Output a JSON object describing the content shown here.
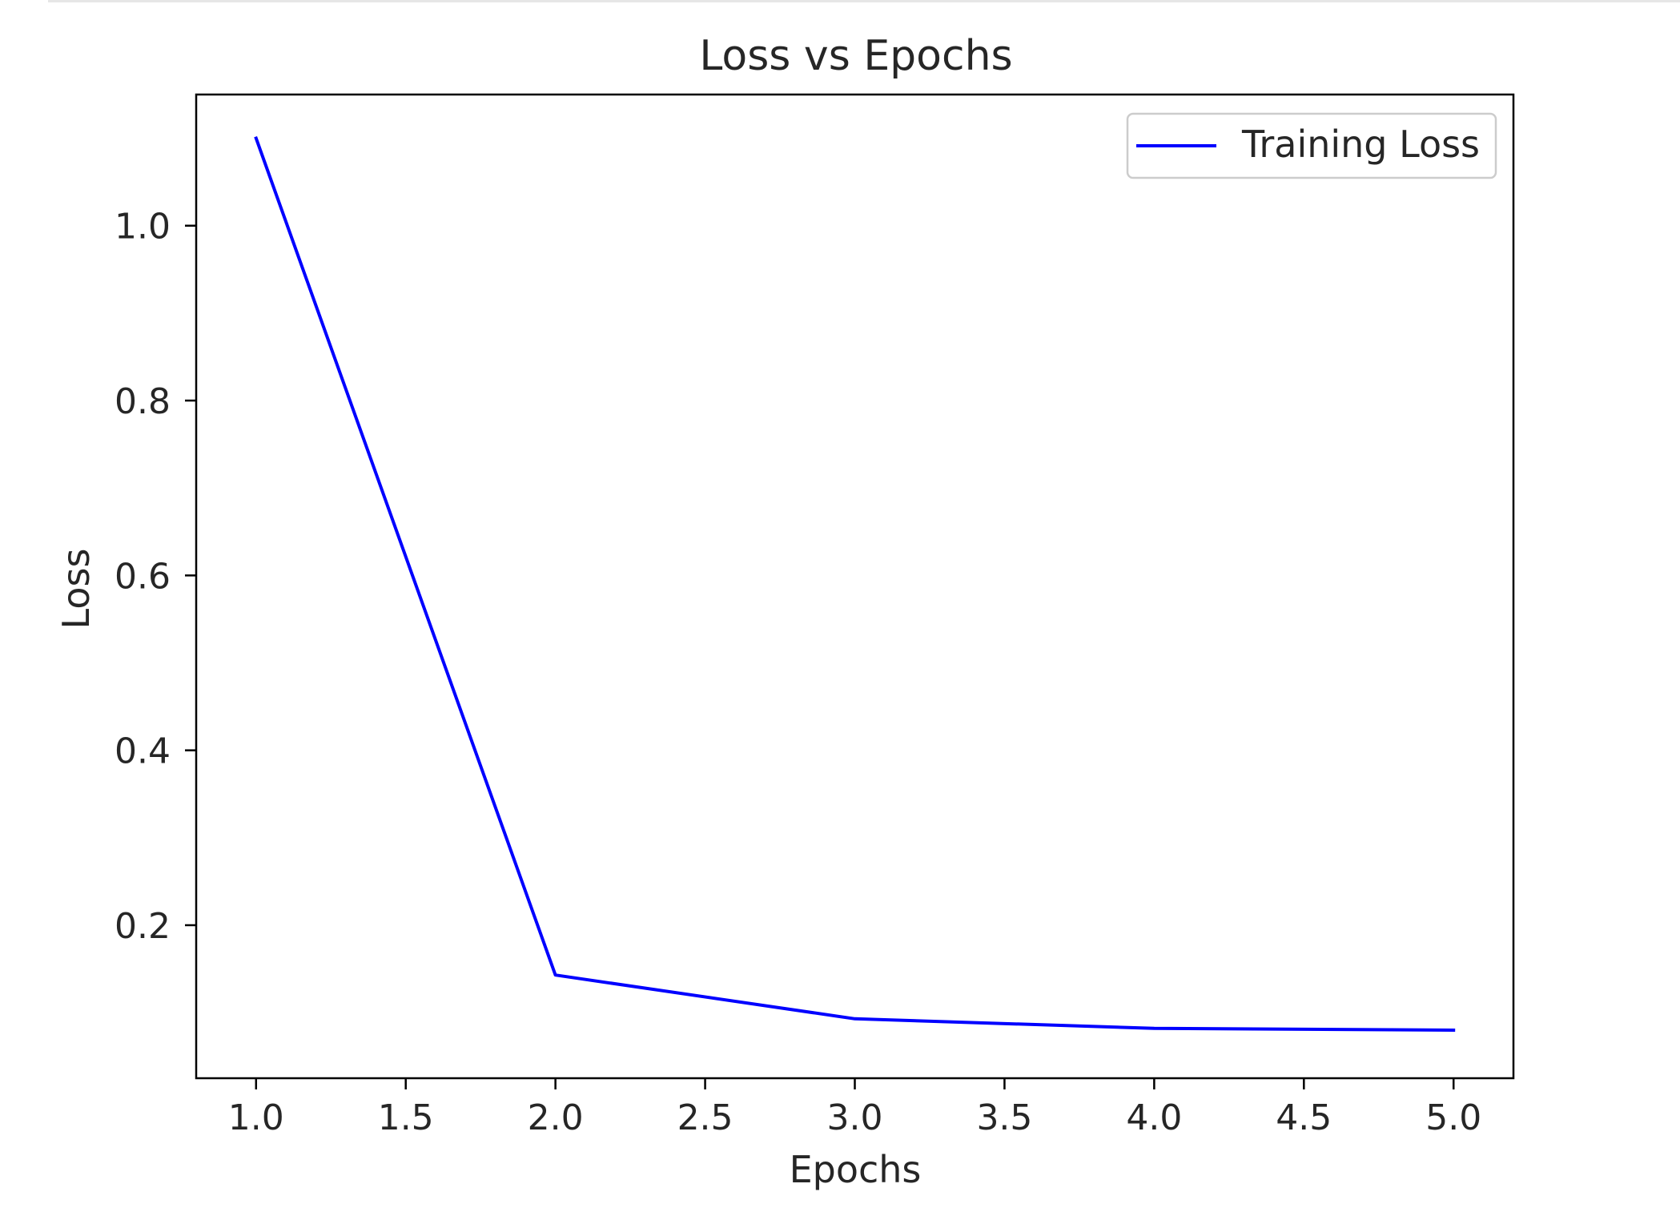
{
  "chart_data": {
    "type": "line",
    "title": "Loss vs Epochs",
    "xlabel": "Epochs",
    "ylabel": "Loss",
    "x": [
      1.0,
      2.0,
      3.0,
      4.0,
      5.0
    ],
    "series": [
      {
        "name": "Training Loss",
        "color": "#0000ff",
        "values": [
          1.1,
          0.143,
          0.093,
          0.082,
          0.08
        ]
      }
    ],
    "xlim": [
      0.8,
      5.2
    ],
    "ylim": [
      0.025,
      1.15
    ],
    "xticks": [
      1.0,
      1.5,
      2.0,
      2.5,
      3.0,
      3.5,
      4.0,
      4.5,
      5.0
    ],
    "xtick_labels": [
      "1.0",
      "1.5",
      "2.0",
      "2.5",
      "3.0",
      "3.5",
      "4.0",
      "4.5",
      "5.0"
    ],
    "yticks": [
      0.2,
      0.4,
      0.6,
      0.8,
      1.0
    ],
    "ytick_labels": [
      "0.2",
      "0.4",
      "0.6",
      "0.8",
      "1.0"
    ],
    "grid": false,
    "legend_position": "top-right"
  }
}
